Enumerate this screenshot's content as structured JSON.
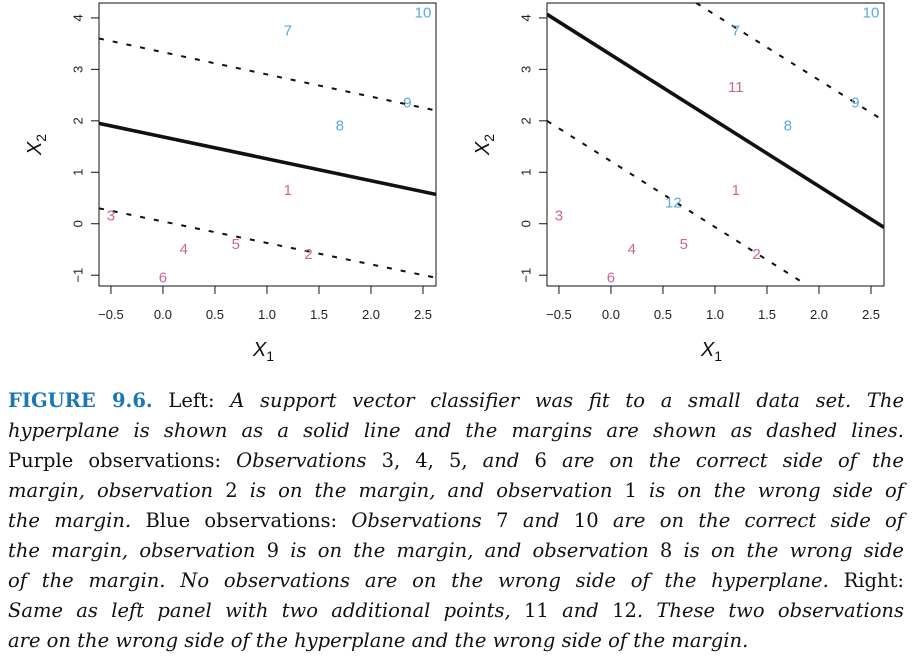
{
  "chart_data": [
    {
      "type": "scatter",
      "panel": "Left",
      "xlabel": "X1",
      "ylabel": "X2",
      "xlim": [
        -0.615,
        2.625
      ],
      "ylim": [
        -1.21,
        4.29
      ],
      "xticks": [
        -0.5,
        0.0,
        0.5,
        1.0,
        1.5,
        2.0,
        2.5
      ],
      "xtick_labels": [
        "−0.5",
        "0.0",
        "0.5",
        "1.0",
        "1.5",
        "2.0",
        "2.5"
      ],
      "yticks": [
        -1,
        0,
        1,
        2,
        3,
        4
      ],
      "ytick_labels": [
        "−1",
        "0",
        "1",
        "2",
        "3",
        "4"
      ],
      "points": [
        {
          "label": "1",
          "x": 1.2,
          "y": 0.65,
          "class": "purple"
        },
        {
          "label": "2",
          "x": 1.4,
          "y": -0.6,
          "class": "purple"
        },
        {
          "label": "3",
          "x": -0.5,
          "y": 0.15,
          "class": "purple"
        },
        {
          "label": "4",
          "x": 0.2,
          "y": -0.5,
          "class": "purple"
        },
        {
          "label": "5",
          "x": 0.7,
          "y": -0.4,
          "class": "purple"
        },
        {
          "label": "6",
          "x": 0.0,
          "y": -1.05,
          "class": "purple"
        },
        {
          "label": "7",
          "x": 1.2,
          "y": 3.75,
          "class": "blue"
        },
        {
          "label": "8",
          "x": 1.7,
          "y": 1.9,
          "class": "blue"
        },
        {
          "label": "9",
          "x": 2.35,
          "y": 2.35,
          "class": "blue"
        },
        {
          "label": "10",
          "x": 2.5,
          "y": 4.1,
          "class": "blue"
        }
      ],
      "lines": [
        {
          "name": "hyperplane",
          "style": "solid",
          "from": [
            -0.615,
            1.95
          ],
          "to": [
            2.625,
            0.57
          ]
        },
        {
          "name": "margin-upper",
          "style": "dashed",
          "from": [
            -0.615,
            3.6
          ],
          "to": [
            2.625,
            2.2
          ]
        },
        {
          "name": "margin-lower",
          "style": "dashed",
          "from": [
            -0.615,
            0.3
          ],
          "to": [
            2.625,
            -1.05
          ]
        }
      ]
    },
    {
      "type": "scatter",
      "panel": "Right",
      "xlabel": "X1",
      "ylabel": "X2",
      "xlim": [
        -0.615,
        2.625
      ],
      "ylim": [
        -1.21,
        4.29
      ],
      "xticks": [
        -0.5,
        0.0,
        0.5,
        1.0,
        1.5,
        2.0,
        2.5
      ],
      "xtick_labels": [
        "−0.5",
        "0.0",
        "0.5",
        "1.0",
        "1.5",
        "2.0",
        "2.5"
      ],
      "yticks": [
        -1,
        0,
        1,
        2,
        3,
        4
      ],
      "ytick_labels": [
        "−1",
        "0",
        "1",
        "2",
        "3",
        "4"
      ],
      "points": [
        {
          "label": "1",
          "x": 1.2,
          "y": 0.65,
          "class": "purple"
        },
        {
          "label": "2",
          "x": 1.4,
          "y": -0.6,
          "class": "purple"
        },
        {
          "label": "3",
          "x": -0.5,
          "y": 0.15,
          "class": "purple"
        },
        {
          "label": "4",
          "x": 0.2,
          "y": -0.5,
          "class": "purple"
        },
        {
          "label": "5",
          "x": 0.7,
          "y": -0.4,
          "class": "purple"
        },
        {
          "label": "6",
          "x": 0.0,
          "y": -1.05,
          "class": "purple"
        },
        {
          "label": "7",
          "x": 1.2,
          "y": 3.75,
          "class": "blue"
        },
        {
          "label": "8",
          "x": 1.7,
          "y": 1.9,
          "class": "blue"
        },
        {
          "label": "9",
          "x": 2.35,
          "y": 2.35,
          "class": "blue"
        },
        {
          "label": "10",
          "x": 2.5,
          "y": 4.1,
          "class": "blue"
        },
        {
          "label": "11",
          "x": 1.2,
          "y": 2.65,
          "class": "purple"
        },
        {
          "label": "12",
          "x": 0.6,
          "y": 0.4,
          "class": "blue"
        }
      ],
      "lines": [
        {
          "name": "hyperplane",
          "style": "solid",
          "from": [
            -0.615,
            4.07
          ],
          "to": [
            2.625,
            -0.07
          ]
        },
        {
          "name": "margin-upper",
          "style": "dashed",
          "from": [
            0.82,
            4.29
          ],
          "to": [
            2.625,
            2.0
          ]
        },
        {
          "name": "margin-lower",
          "style": "dashed",
          "from": [
            -0.615,
            2.0
          ],
          "to": [
            1.85,
            -1.15
          ]
        }
      ]
    }
  ],
  "colors": {
    "purple": "#cc6699",
    "blue": "#5aaadb",
    "figure_label": "#1b76b4"
  },
  "caption": {
    "lines": [
      [
        {
          "t": "FIGURE 9.6.",
          "s": "b"
        },
        {
          "t": " Left: ",
          "s": "r"
        },
        {
          "t": "A support vector classifier was fit to a small data set. The",
          "s": "i"
        }
      ],
      [
        {
          "t": "hyperplane is shown as a solid line and the margins are shown as dashed lines.",
          "s": "i"
        }
      ],
      [
        {
          "t": "Purple observations: ",
          "s": "r"
        },
        {
          "t": "Observations ",
          "s": "i"
        },
        {
          "t": "3, 4, 5, ",
          "s": "r"
        },
        {
          "t": "and ",
          "s": "i"
        },
        {
          "t": "6 ",
          "s": "r"
        },
        {
          "t": "are on the correct side of the",
          "s": "i"
        }
      ],
      [
        {
          "t": "margin, observation ",
          "s": "i"
        },
        {
          "t": "2 ",
          "s": "r"
        },
        {
          "t": "is on the margin, and observation ",
          "s": "i"
        },
        {
          "t": "1 ",
          "s": "r"
        },
        {
          "t": "is on the wrong side of",
          "s": "i"
        }
      ],
      [
        {
          "t": "the margin.",
          "s": "i"
        },
        {
          "t": " Blue observations: ",
          "s": "r"
        },
        {
          "t": "Observations ",
          "s": "i"
        },
        {
          "t": "7 ",
          "s": "r"
        },
        {
          "t": "and ",
          "s": "i"
        },
        {
          "t": "10 ",
          "s": "r"
        },
        {
          "t": "are on the correct side of",
          "s": "i"
        }
      ],
      [
        {
          "t": "the margin, observation ",
          "s": "i"
        },
        {
          "t": "9 ",
          "s": "r"
        },
        {
          "t": "is on the margin, and observation ",
          "s": "i"
        },
        {
          "t": "8 ",
          "s": "r"
        },
        {
          "t": "is on the wrong side",
          "s": "i"
        }
      ],
      [
        {
          "t": "of the margin. No observations are on the wrong side of the hyperplane.",
          "s": "i"
        },
        {
          "t": " Right:",
          "s": "r"
        }
      ],
      [
        {
          "t": "Same as left panel with two additional points, ",
          "s": "i"
        },
        {
          "t": "11 ",
          "s": "r"
        },
        {
          "t": "and ",
          "s": "i"
        },
        {
          "t": "12",
          "s": "r"
        },
        {
          "t": ". These two observations",
          "s": "i"
        }
      ],
      [
        {
          "t": "are on the wrong side of the hyperplane and the wrong side of the margin.",
          "s": "i"
        }
      ]
    ]
  }
}
